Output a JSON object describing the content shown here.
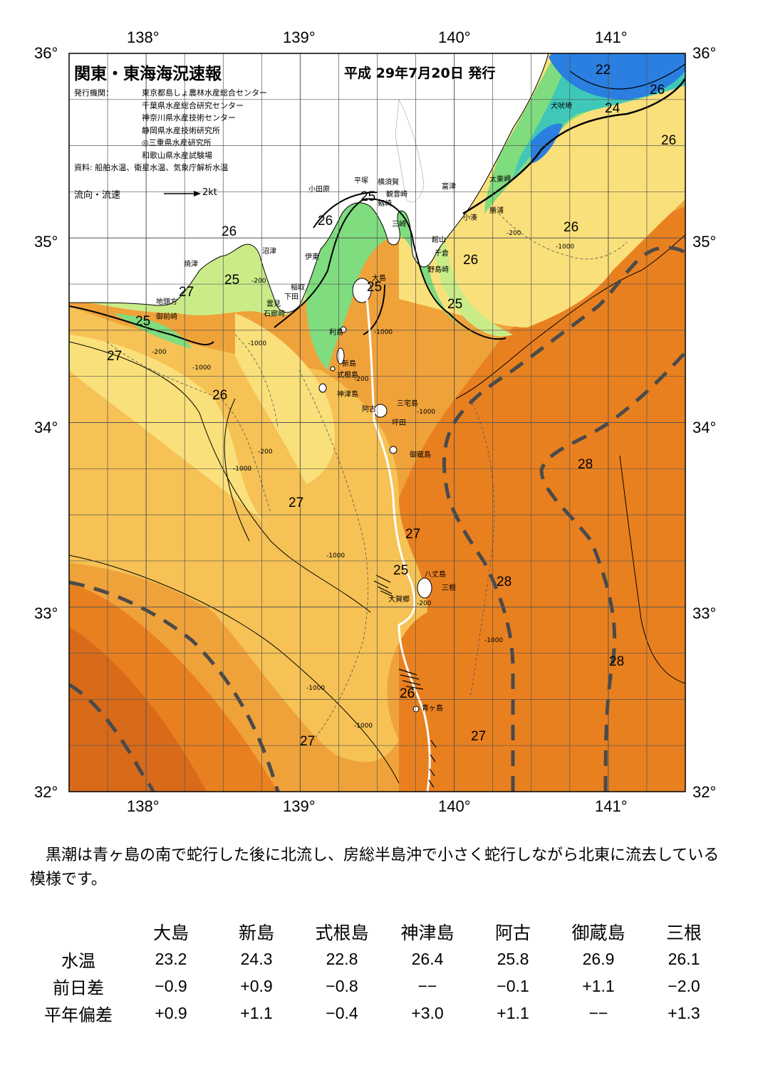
{
  "map": {
    "title": "関東・東海海況速報",
    "issue_date": "平成 29年7月20日 発行",
    "org_label": "発行機関：",
    "organizations": [
      "東京都島しょ農林水産総合センター",
      "千葉県水産総合研究センター",
      "神奈川県水産技術センター",
      "静岡県水産技術研究所",
      "◎三重県水産研究所",
      "和歌山県水産試験場"
    ],
    "sources": "資料: 船舶水温、衛星水温、気象庁解析水温",
    "legend_label": "流向・流速",
    "legend_speed": "2kt",
    "lon_labels": [
      "138°",
      "139°",
      "140°",
      "141°"
    ],
    "lat_labels": [
      "36°",
      "35°",
      "34°",
      "33°",
      "32°"
    ],
    "place_names": [
      "犬吠埼",
      "太東岬",
      "勝浦",
      "小湊",
      "富津",
      "横須賀",
      "平塚",
      "小田原",
      "観音崎",
      "剱崎",
      "三崎",
      "館山",
      "千倉",
      "野島崎",
      "大島",
      "沼津",
      "伊東",
      "稲取",
      "下田",
      "雲見",
      "石廊崎",
      "焼津",
      "地頭方",
      "御前崎",
      "利島",
      "新島",
      "式根島",
      "神津島",
      "阿古",
      "三宅島",
      "坪田",
      "御蔵島",
      "八丈島",
      "三根",
      "大賀郷",
      "青ヶ島"
    ],
    "isotherm_labels": [
      "22",
      "26",
      "24",
      "26",
      "25",
      "26",
      "26",
      "25",
      "26",
      "27",
      "25",
      "26",
      "25",
      "25",
      "27",
      "26",
      "28",
      "27",
      "27",
      "25",
      "28",
      "28",
      "26",
      "27",
      "27"
    ],
    "depth_labels": [
      "-200",
      "-1000",
      "-1000",
      "-200",
      "-200",
      "-1000",
      "-200",
      "-1000",
      "-200",
      "-1000",
      "-1000",
      "-1000",
      "-1000",
      "-1000",
      "-200",
      "-1000"
    ],
    "colors": {
      "sea_warmest": "#e9801f",
      "sea_warm": "#f0a23a",
      "sea_mid": "#f6c255",
      "sea_mild": "#fae07a",
      "sea_cool": "#c9ec88",
      "sea_cooler": "#7fdc7f",
      "sea_cold": "#3fc8b8",
      "sea_coldest": "#2a7fe0",
      "land": "#ffffff",
      "kuroshio_axis": "#4a4a4a",
      "ship_track": "#ffffff"
    }
  },
  "summary": "黒潮は青ヶ島の南で蛇行した後に北流し、房総半島沖で小さく蛇行しながら北東に流去している模様です。",
  "table": {
    "stations": [
      "大島",
      "新島",
      "式根島",
      "神津島",
      "阿古",
      "御蔵島",
      "三根"
    ],
    "rows": [
      {
        "label": "水温",
        "values": [
          "23.2",
          "24.3",
          "22.8",
          "26.4",
          "25.8",
          "26.9",
          "26.1"
        ]
      },
      {
        "label": "前日差",
        "values": [
          "−0.9",
          "+0.9",
          "−0.8",
          "−−",
          "−0.1",
          "+1.1",
          "−2.0"
        ]
      },
      {
        "label": "平年偏差",
        "values": [
          "+0.9",
          "+1.1",
          "−0.4",
          "+3.0",
          "+1.1",
          "−−",
          "+1.3"
        ]
      }
    ]
  }
}
